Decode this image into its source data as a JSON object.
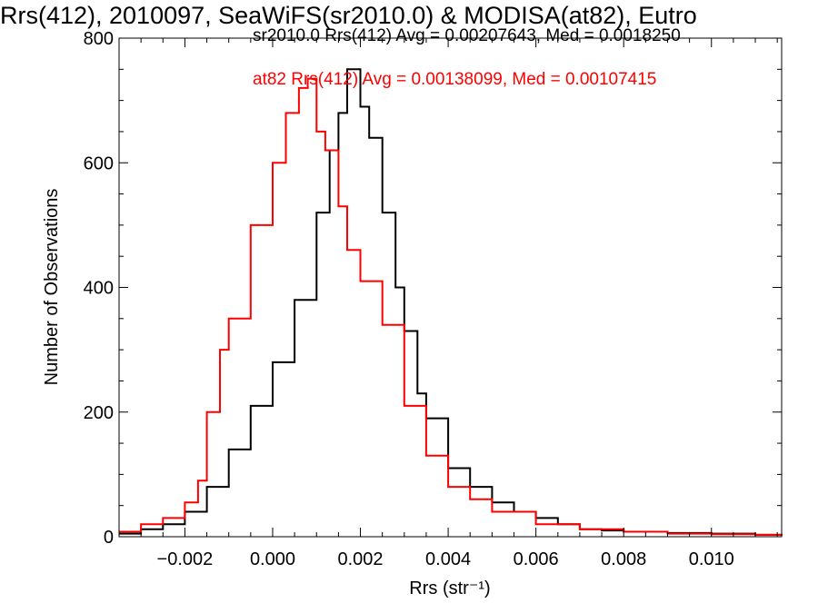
{
  "colors": {
    "series_black": "#000000",
    "series_red": "#ff0000",
    "axes": "#000000",
    "background": "#ffffff"
  },
  "chart_data": {
    "type": "line",
    "step": true,
    "title": "Rrs(412), 2010097, SeaWiFS(sr2010.0) & MODISA(at82), Eutro",
    "xlabel": "Rrs (str⁻¹)",
    "ylabel": "Number of Observations",
    "xlim": [
      -0.0035,
      0.0116
    ],
    "ylim": [
      0,
      800
    ],
    "xticks": [
      -0.002,
      0.0,
      0.002,
      0.004,
      0.006,
      0.008,
      0.01
    ],
    "xtick_labels": [
      "−0.002",
      "0.000",
      "0.002",
      "0.004",
      "0.006",
      "0.008",
      "0.010"
    ],
    "yticks": [
      0,
      200,
      400,
      600,
      800
    ],
    "ytick_labels": [
      "0",
      "200",
      "400",
      "600",
      "800"
    ],
    "grid": false,
    "legend_position": "top-right",
    "legend": [
      "sr2010.0 Rrs(412) Avg = 0.00207643, Med = 0.0018250",
      "at82 Rrs(412) Avg = 0.00138099, Med = 0.00107415"
    ],
    "series": [
      {
        "color": "#000000",
        "x": [
          -0.0035,
          -0.003,
          -0.0025,
          -0.002,
          -0.0015,
          -0.001,
          -0.0005,
          0.0,
          0.0005,
          0.001,
          0.0013,
          0.0015,
          0.0017,
          0.002,
          0.0022,
          0.0025,
          0.0028,
          0.003,
          0.0033,
          0.0035,
          0.004,
          0.0045,
          0.005,
          0.0055,
          0.006,
          0.0065,
          0.007,
          0.0075,
          0.008,
          0.009,
          0.01,
          0.011,
          0.0116
        ],
        "y": [
          5,
          12,
          20,
          40,
          80,
          140,
          210,
          280,
          380,
          520,
          620,
          680,
          750,
          690,
          640,
          520,
          400,
          330,
          230,
          190,
          110,
          80,
          55,
          40,
          30,
          20,
          12,
          10,
          8,
          6,
          5,
          3,
          2
        ]
      },
      {
        "color": "#ff0000",
        "x": [
          -0.0035,
          -0.003,
          -0.0025,
          -0.002,
          -0.0017,
          -0.0015,
          -0.0012,
          -0.001,
          -0.0005,
          0.0,
          0.0003,
          0.0006,
          0.0008,
          0.001,
          0.0012,
          0.0015,
          0.0017,
          0.002,
          0.0025,
          0.003,
          0.0035,
          0.004,
          0.0045,
          0.005,
          0.006,
          0.007,
          0.008,
          0.009,
          0.01,
          0.011,
          0.0116
        ],
        "y": [
          8,
          20,
          30,
          55,
          90,
          200,
          300,
          350,
          500,
          600,
          680,
          720,
          735,
          650,
          620,
          530,
          460,
          410,
          340,
          210,
          130,
          80,
          60,
          40,
          20,
          12,
          8,
          5,
          4,
          3,
          2
        ]
      }
    ]
  }
}
